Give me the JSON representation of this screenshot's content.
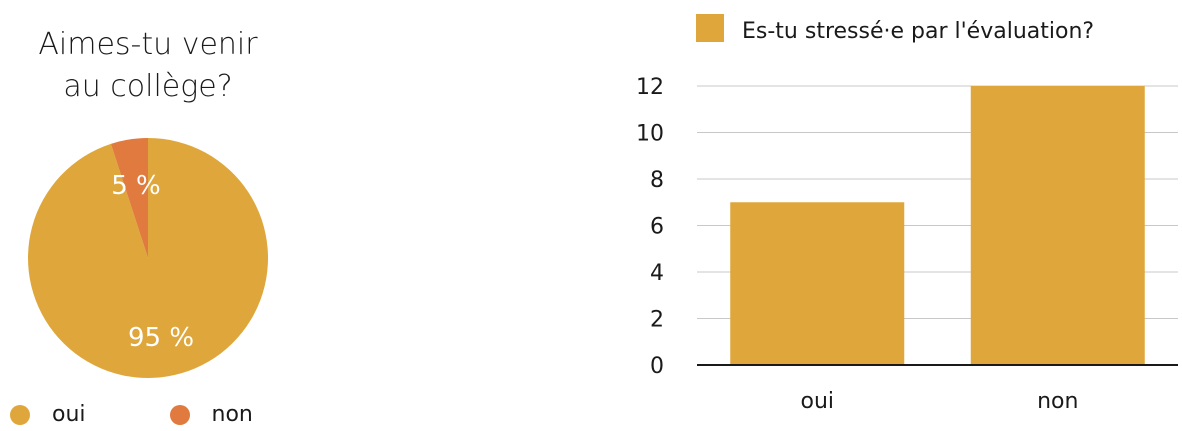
{
  "chart_data": [
    {
      "type": "pie",
      "title": "Aimes-tu venir au collège?",
      "title_lines": [
        "Aimes-tu venir",
        "au collège?"
      ],
      "slices": [
        {
          "label": "oui",
          "value": 95,
          "display": "95 %",
          "color": "#dfa73b"
        },
        {
          "label": "non",
          "value": 5,
          "display": "5 %",
          "color": "#e07a3e"
        }
      ],
      "legend_position": "bottom"
    },
    {
      "type": "bar",
      "categories": [
        "oui",
        "non"
      ],
      "series": [
        {
          "name": "Es-tu stressé·e par l'évaluation?",
          "values": [
            7,
            12
          ],
          "color": "#dfa73b"
        }
      ],
      "ylim": [
        0,
        12
      ],
      "yticks": [
        "0",
        "2",
        "4",
        "6",
        "8",
        "10",
        "12"
      ],
      "grid": true,
      "legend_position": "top"
    }
  ]
}
